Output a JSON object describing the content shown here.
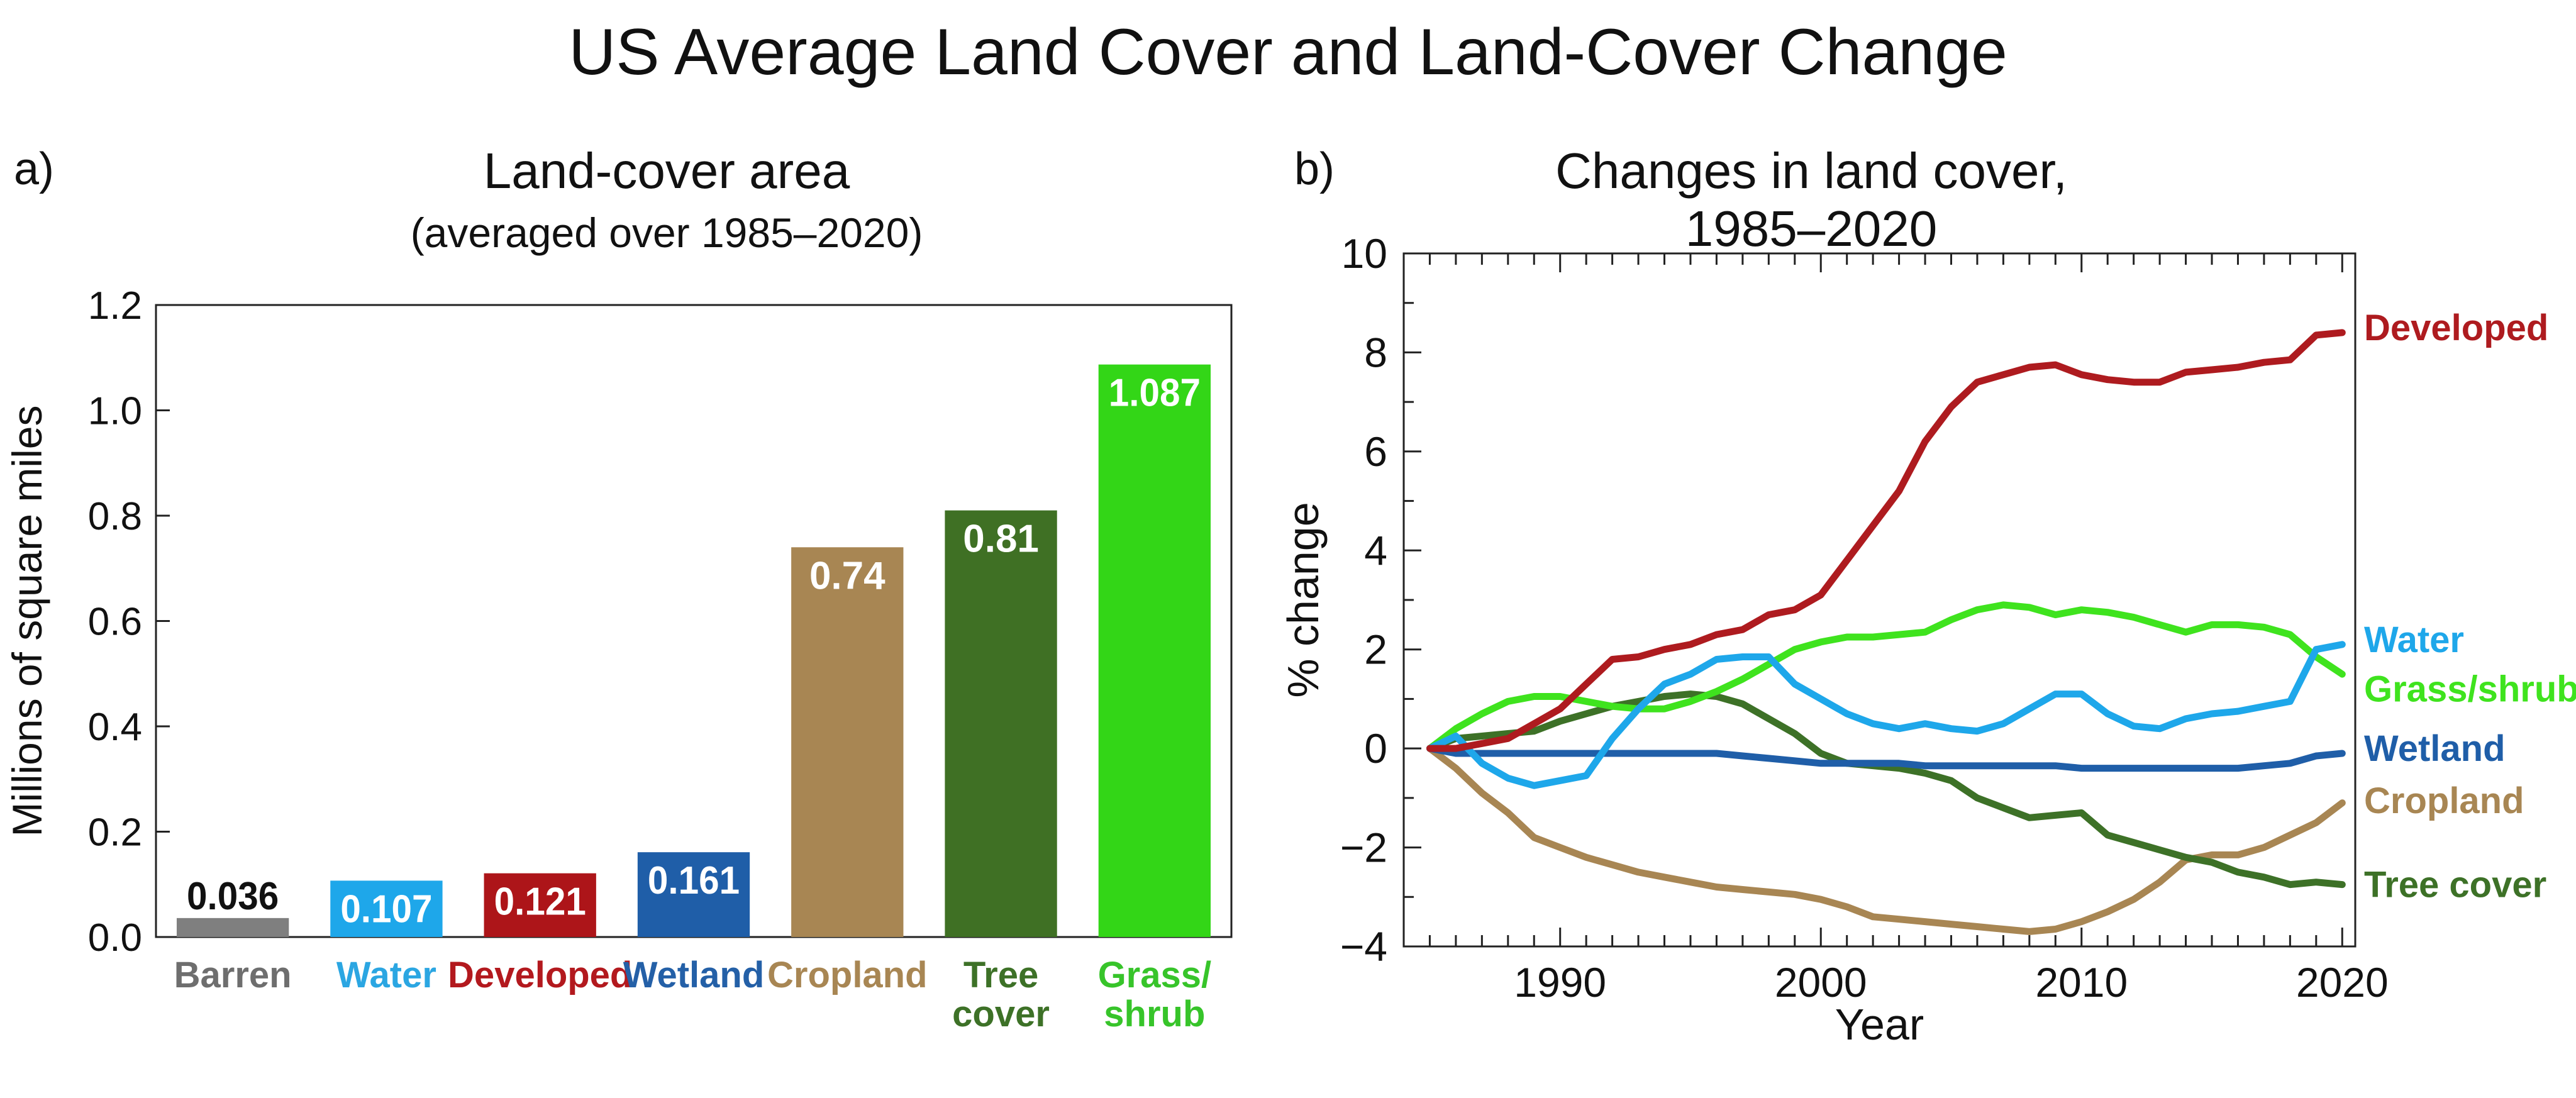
{
  "title": "US Average Land Cover and Land-Cover Change",
  "chart_data": [
    {
      "panel": "a)",
      "type": "bar",
      "title": "Land-cover area",
      "subtitle": "(averaged over 1985–2020)",
      "xlabel": "",
      "ylabel": "Millions of square miles",
      "ylim": [
        0,
        1.2
      ],
      "yticks": [
        "0.0",
        "0.2",
        "0.4",
        "0.6",
        "0.8",
        "1.0",
        "1.2"
      ],
      "grid": false,
      "bars": [
        {
          "label": [
            "Barren"
          ],
          "value": 0.036,
          "value_label": "0.036",
          "color": "#7f7f7f",
          "label_color": "#6e6e6e",
          "value_color": "#111111",
          "value_inside": false
        },
        {
          "label": [
            "Water"
          ],
          "value": 0.107,
          "value_label": "0.107",
          "color": "#1ea7ea",
          "label_color": "#2ba6e2",
          "value_color": "#ffffff",
          "value_inside": true
        },
        {
          "label": [
            "Developed"
          ],
          "value": 0.121,
          "value_label": "0.121",
          "color": "#ad1519",
          "label_color": "#b3191e",
          "value_color": "#ffffff",
          "value_inside": true
        },
        {
          "label": [
            "Wetland"
          ],
          "value": 0.161,
          "value_label": "0.161",
          "color": "#1f5ea8",
          "label_color": "#2460a7",
          "value_color": "#ffffff",
          "value_inside": true
        },
        {
          "label": [
            "Cropland"
          ],
          "value": 0.74,
          "value_label": "0.74",
          "color": "#a88653",
          "label_color": "#a88653",
          "value_color": "#ffffff",
          "value_inside": true
        },
        {
          "label": [
            "Tree",
            "cover"
          ],
          "value": 0.81,
          "value_label": "0.81",
          "color": "#3f7024",
          "label_color": "#3d7127",
          "value_color": "#ffffff",
          "value_inside": true
        },
        {
          "label": [
            "Grass/",
            "shrub"
          ],
          "value": 1.087,
          "value_label": "1.087",
          "color": "#33d617",
          "label_color": "#37c42a",
          "value_color": "#ffffff",
          "value_inside": true
        }
      ]
    },
    {
      "panel": "b)",
      "type": "line",
      "title": "Changes in land cover, 1985–2020",
      "xlabel": "Year",
      "ylabel": "% change",
      "xlim": [
        1984,
        2020.5
      ],
      "ylim": [
        -4,
        10
      ],
      "xticks": [
        1990,
        2000,
        2010,
        2020
      ],
      "yticks": [
        -4,
        -2,
        0,
        2,
        4,
        6,
        8,
        10
      ],
      "ytick_labels": [
        "−4",
        "−2",
        "0",
        "2",
        "4",
        "6",
        "8",
        "10"
      ],
      "grid": false,
      "legend": "direct labels at right end of lines",
      "x": [
        1985,
        1986,
        1987,
        1988,
        1989,
        1990,
        1991,
        1992,
        1993,
        1994,
        1995,
        1996,
        1997,
        1998,
        1999,
        2000,
        2001,
        2002,
        2003,
        2004,
        2005,
        2006,
        2007,
        2008,
        2009,
        2010,
        2011,
        2012,
        2013,
        2014,
        2015,
        2016,
        2017,
        2018,
        2019,
        2020
      ],
      "series": [
        {
          "name": "Developed",
          "color": "#ae1b1f",
          "label_y": 8.5,
          "values": [
            0,
            0,
            0.1,
            0.2,
            0.5,
            0.8,
            1.3,
            1.8,
            1.85,
            2.0,
            2.1,
            2.3,
            2.4,
            2.7,
            2.8,
            3.1,
            3.8,
            4.5,
            5.2,
            6.2,
            6.9,
            7.4,
            7.55,
            7.7,
            7.75,
            7.55,
            7.45,
            7.4,
            7.4,
            7.6,
            7.65,
            7.7,
            7.8,
            7.85,
            8.35,
            8.4
          ]
        },
        {
          "name": "Water",
          "color": "#1ea7ea",
          "label_y": 2.2,
          "values": [
            0,
            0.25,
            -0.3,
            -0.6,
            -0.75,
            -0.65,
            -0.55,
            0.2,
            0.8,
            1.3,
            1.5,
            1.8,
            1.85,
            1.85,
            1.3,
            1.0,
            0.7,
            0.5,
            0.4,
            0.5,
            0.4,
            0.35,
            0.5,
            0.8,
            1.1,
            1.1,
            0.7,
            0.45,
            0.4,
            0.6,
            0.7,
            0.75,
            0.85,
            0.95,
            2.0,
            2.1
          ]
        },
        {
          "name": "Grass/shrub",
          "color": "#3fe31e",
          "label_y": 1.2,
          "values": [
            0,
            0.4,
            0.7,
            0.95,
            1.05,
            1.05,
            0.95,
            0.85,
            0.8,
            0.8,
            0.95,
            1.15,
            1.4,
            1.7,
            2.0,
            2.15,
            2.25,
            2.25,
            2.3,
            2.35,
            2.6,
            2.8,
            2.9,
            2.85,
            2.7,
            2.8,
            2.75,
            2.65,
            2.5,
            2.35,
            2.5,
            2.5,
            2.45,
            2.3,
            1.85,
            1.5
          ]
        },
        {
          "name": "Wetland",
          "color": "#1f5ea8",
          "label_y": 0.0,
          "values": [
            0,
            -0.1,
            -0.1,
            -0.1,
            -0.1,
            -0.1,
            -0.1,
            -0.1,
            -0.1,
            -0.1,
            -0.1,
            -0.1,
            -0.15,
            -0.2,
            -0.25,
            -0.3,
            -0.3,
            -0.3,
            -0.3,
            -0.35,
            -0.35,
            -0.35,
            -0.35,
            -0.35,
            -0.35,
            -0.4,
            -0.4,
            -0.4,
            -0.4,
            -0.4,
            -0.4,
            -0.4,
            -0.35,
            -0.3,
            -0.15,
            -0.1
          ]
        },
        {
          "name": "Cropland",
          "color": "#a88653",
          "label_y": -1.05,
          "values": [
            0,
            -0.4,
            -0.9,
            -1.3,
            -1.8,
            -2.0,
            -2.2,
            -2.35,
            -2.5,
            -2.6,
            -2.7,
            -2.8,
            -2.85,
            -2.9,
            -2.95,
            -3.05,
            -3.2,
            -3.4,
            -3.45,
            -3.5,
            -3.55,
            -3.6,
            -3.65,
            -3.7,
            -3.65,
            -3.5,
            -3.3,
            -3.05,
            -2.7,
            -2.25,
            -2.15,
            -2.15,
            -2.0,
            -1.75,
            -1.5,
            -1.1
          ]
        },
        {
          "name": "Tree cover",
          "color": "#3d7127",
          "label_y": -2.75,
          "values": [
            0,
            0.2,
            0.25,
            0.3,
            0.35,
            0.55,
            0.7,
            0.85,
            0.95,
            1.05,
            1.1,
            1.05,
            0.9,
            0.6,
            0.3,
            -0.1,
            -0.3,
            -0.35,
            -0.4,
            -0.5,
            -0.65,
            -1.0,
            -1.2,
            -1.4,
            -1.35,
            -1.3,
            -1.75,
            -1.9,
            -2.05,
            -2.2,
            -2.3,
            -2.5,
            -2.6,
            -2.75,
            -2.7,
            -2.75
          ]
        }
      ]
    }
  ]
}
